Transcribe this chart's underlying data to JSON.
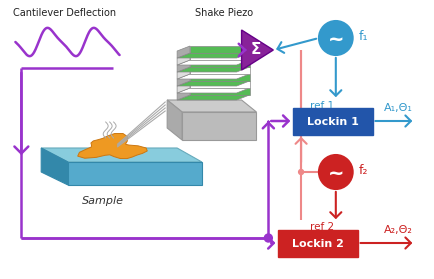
{
  "bg_color": "#ffffff",
  "purple": "#9933CC",
  "blue": "#3399CC",
  "red": "#CC2222",
  "red_light": "#EE8888",
  "lockin1_color": "#2255AA",
  "lockin2_color": "#CC2222",
  "sigma_color": "#882299",
  "teal_top": "#88DDEE",
  "teal_side": "#55AACC",
  "teal_front": "#3399BB",
  "orange_blob": "#EE9922",
  "gray_light": "#DDDDDD",
  "gray_mid": "#BBBBBB",
  "gray_dark": "#999999",
  "green_layer": "#44AA44",
  "cantilever_label": "Cantilever Deflection",
  "shake_piezo_label": "Shake Piezo",
  "sample_label": "Sample",
  "lockin1_label": "Lockin 1",
  "lockin2_label": "Lockin 2",
  "f1_label": "f₁",
  "f2_label": "f₂",
  "ref1_label": "ref 1",
  "ref2_label": "ref 2",
  "out1_label": "A₁,Θ₁",
  "out2_label": "A₂,Θ₂"
}
